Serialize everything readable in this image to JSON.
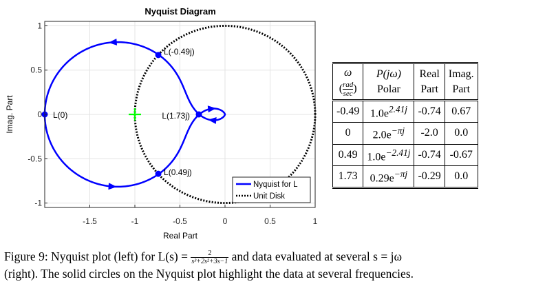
{
  "chart_data": {
    "type": "line",
    "title": "Nyquist Diagram",
    "xlabel": "Real Part",
    "ylabel": "Imag. Part",
    "xlim": [
      -2.0,
      1.0
    ],
    "ylim": [
      -1.05,
      1.05
    ],
    "xticks": [
      "-1.5",
      "-1",
      "-0.5",
      "0",
      "0.5",
      "1"
    ],
    "yticks": [
      "1",
      "0.5",
      "0",
      "-0.5",
      "-1"
    ],
    "grid": true,
    "legend_position": "bottom-right",
    "series": [
      {
        "name": "Nyquist for L",
        "style": "solid",
        "color": "#0000ff"
      },
      {
        "name": "Unit Disk",
        "style": "dotted",
        "color": "#000000"
      }
    ],
    "highlighted_points": [
      {
        "label": "L(0)",
        "x": -2.0,
        "y": 0.0
      },
      {
        "label": "L(-0.49j)",
        "x": -0.74,
        "y": 0.67
      },
      {
        "label": "L(0.49j)",
        "x": -0.74,
        "y": -0.67
      },
      {
        "label": "L(1.73j)",
        "x": -0.29,
        "y": 0.0
      }
    ],
    "critical_point_marker": {
      "x": -1.0,
      "y": 0.0,
      "color": "#00ff00"
    }
  },
  "table": {
    "headers": [
      {
        "line1": "ω",
        "line2": "(rad/sec)"
      },
      {
        "line1": "P(jω)",
        "line2": "Polar"
      },
      {
        "line1": "Real",
        "line2": "Part"
      },
      {
        "line1": "Imag.",
        "line2": "Part"
      }
    ],
    "frac_num": "rad",
    "frac_den": "sec",
    "rows": [
      {
        "w": "-0.49",
        "polar_base": "1.0e",
        "polar_exp": "2.41j",
        "real": "-0.74",
        "imag": "0.67"
      },
      {
        "w": "0",
        "polar_base": "2.0e",
        "polar_exp": "−πj",
        "real": "-2.0",
        "imag": "0.0"
      },
      {
        "w": "0.49",
        "polar_base": "1.0e",
        "polar_exp": "−2.41j",
        "real": "-0.74",
        "imag": "-0.67"
      },
      {
        "w": "1.73",
        "polar_base": "0.29e",
        "polar_exp": "−πj",
        "real": "-0.29",
        "imag": "0.0"
      }
    ]
  },
  "caption": {
    "part1": "Figure 9: Nyquist plot (left) for L(s) =",
    "frac_num": "2",
    "frac_den": "s³+2s²+3s−1",
    "part2": "and data evaluated at several s = jω",
    "line2": "(right). The solid circles on the Nyquist plot highlight the data at several frequencies."
  }
}
